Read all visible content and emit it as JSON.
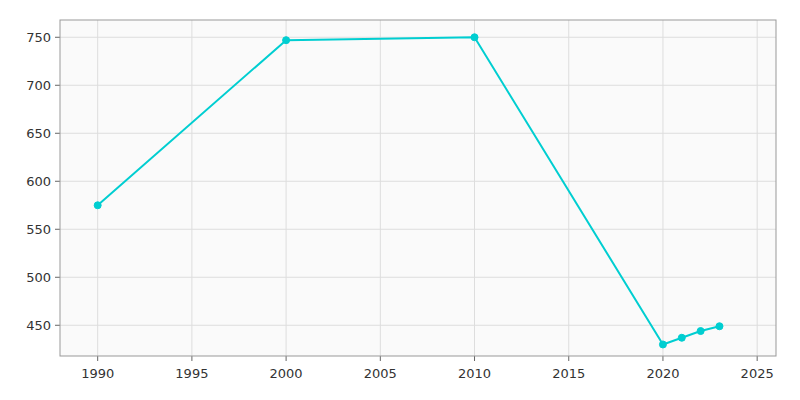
{
  "chart_data": {
    "type": "line",
    "x": [
      1990,
      2000,
      2010,
      2020,
      2021,
      2022,
      2023
    ],
    "values": [
      575,
      747,
      750,
      430,
      437,
      444,
      449
    ],
    "color": "#00CED1",
    "marker": "circle",
    "xlim": [
      1988,
      2026
    ],
    "ylim": [
      418,
      768
    ],
    "xticks": [
      1990,
      1995,
      2000,
      2005,
      2010,
      2015,
      2020,
      2025
    ],
    "yticks": [
      450,
      500,
      550,
      600,
      650,
      700,
      750
    ],
    "grid": true
  }
}
